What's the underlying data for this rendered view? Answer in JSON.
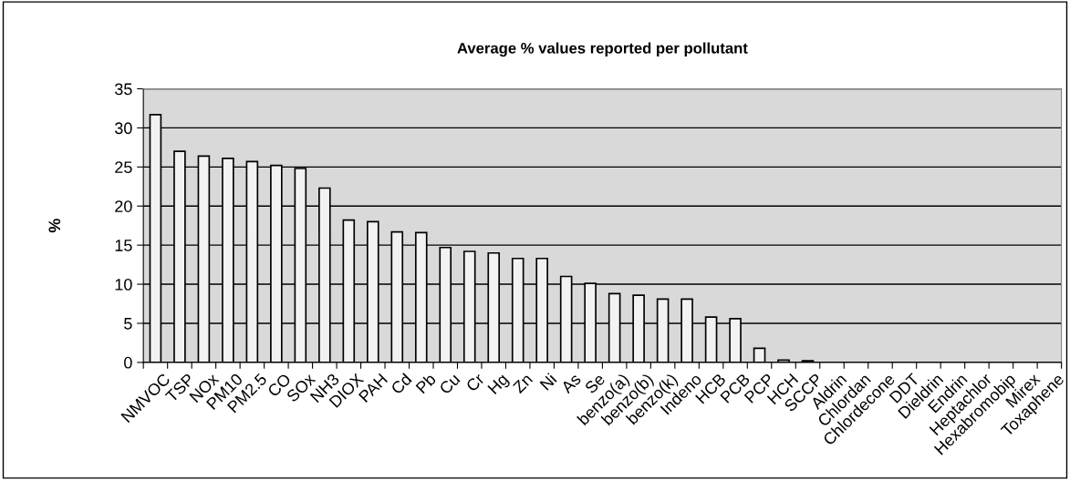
{
  "chart_data": {
    "type": "bar",
    "title": "Average % values reported per pollutant",
    "ylabel": "%",
    "categories": [
      "NMVOC",
      "TSP",
      "NOx",
      "PM10",
      "PM2.5",
      "CO",
      "SOx",
      "NH3",
      "DIOX",
      "PAH",
      "Cd",
      "Pb",
      "Cu",
      "Cr",
      "Hg",
      "Zn",
      "Ni",
      "As",
      "Se",
      "benzo(a)",
      "benzo(b)",
      "benzo(k)",
      "Indeno",
      "HCB",
      "PCB",
      "PCP",
      "HCH",
      "SCCP",
      "Aldrin",
      "Chlordan",
      "Chlordecone",
      "DDT",
      "Dieldrin",
      "Endrin",
      "Heptachlor",
      "Hexabromobip",
      "Mirex",
      "Toxaphene"
    ],
    "values": [
      31.7,
      27.0,
      26.4,
      26.1,
      25.7,
      25.2,
      24.8,
      22.3,
      18.2,
      18.0,
      16.7,
      16.6,
      14.7,
      14.2,
      14.0,
      13.3,
      13.3,
      11.0,
      10.1,
      8.8,
      8.6,
      8.1,
      8.1,
      5.8,
      5.6,
      1.8,
      0.3,
      0.2,
      null,
      null,
      null,
      null,
      null,
      null,
      null,
      null,
      null,
      null
    ],
    "color": "#f2f2f2",
    "ylim": [
      0,
      35
    ],
    "yticks": [
      0,
      5,
      10,
      15,
      20,
      25,
      30,
      35
    ],
    "grid": "y"
  }
}
